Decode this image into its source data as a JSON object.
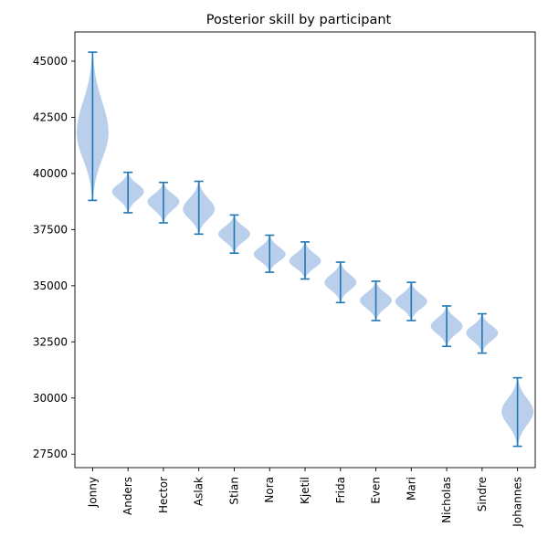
{
  "chart_data": {
    "type": "violin",
    "title": "Posterior skill by participant",
    "xlabel": "",
    "ylabel": "",
    "ylim": [
      26900,
      46300
    ],
    "yticks": [
      27500,
      30000,
      32500,
      35000,
      37500,
      40000,
      42500,
      45000
    ],
    "grid": false,
    "body_color": "#aec7e8",
    "line_color": "#1f77b4",
    "categories": [
      "Jonny",
      "Anders",
      "Hector",
      "Aslak",
      "Stian",
      "Nora",
      "Kjetil",
      "Frida",
      "Even",
      "Mari",
      "Nicholas",
      "Sindre",
      "Johannes"
    ],
    "distributions": [
      {
        "name": "Jonny",
        "min": 38800,
        "center": 41800,
        "max": 45400
      },
      {
        "name": "Anders",
        "min": 38250,
        "center": 39200,
        "max": 40050
      },
      {
        "name": "Hector",
        "min": 37800,
        "center": 38750,
        "max": 39600
      },
      {
        "name": "Aslak",
        "min": 37300,
        "center": 38400,
        "max": 39650
      },
      {
        "name": "Stian",
        "min": 36450,
        "center": 37300,
        "max": 38150
      },
      {
        "name": "Nora",
        "min": 35600,
        "center": 36400,
        "max": 37250
      },
      {
        "name": "Kjetil",
        "min": 35300,
        "center": 36100,
        "max": 36950
      },
      {
        "name": "Frida",
        "min": 34250,
        "center": 35150,
        "max": 36050
      },
      {
        "name": "Even",
        "min": 33450,
        "center": 34350,
        "max": 35200
      },
      {
        "name": "Mari",
        "min": 33450,
        "center": 34300,
        "max": 35150
      },
      {
        "name": "Nicholas",
        "min": 32300,
        "center": 33200,
        "max": 34100
      },
      {
        "name": "Sindre",
        "min": 32000,
        "center": 32900,
        "max": 33750
      },
      {
        "name": "Johannes",
        "min": 27850,
        "center": 29400,
        "max": 30900
      }
    ]
  }
}
